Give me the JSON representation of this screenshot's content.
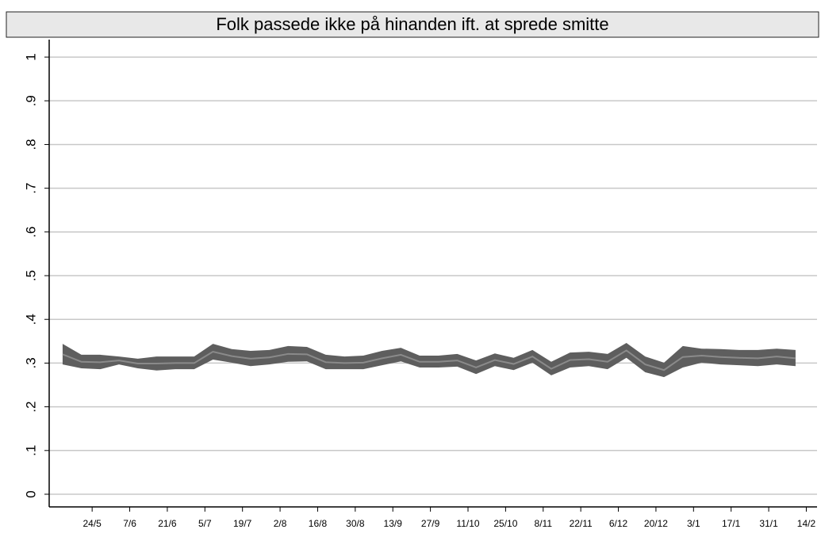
{
  "chart_data": {
    "type": "band",
    "title": "Folk passede ikke på hinanden ift. at sprede smitte",
    "x": [
      -11,
      -4,
      3,
      10,
      17,
      24,
      31,
      38,
      45,
      52,
      59,
      66,
      73,
      80,
      87,
      94,
      101,
      108,
      115,
      122,
      129,
      136,
      143,
      150,
      157,
      164,
      171,
      178,
      185,
      192,
      199,
      206,
      213,
      220,
      227,
      234,
      241,
      248,
      255,
      262
    ],
    "values": [
      0.32,
      0.303,
      0.302,
      0.306,
      0.299,
      0.299,
      0.3,
      0.3,
      0.326,
      0.316,
      0.31,
      0.313,
      0.321,
      0.32,
      0.302,
      0.3,
      0.301,
      0.311,
      0.319,
      0.303,
      0.303,
      0.306,
      0.29,
      0.307,
      0.298,
      0.315,
      0.287,
      0.307,
      0.309,
      0.303,
      0.329,
      0.297,
      0.284,
      0.314,
      0.317,
      0.314,
      0.312,
      0.311,
      0.315,
      0.311
    ],
    "upper": [
      0.344,
      0.319,
      0.319,
      0.315,
      0.31,
      0.315,
      0.315,
      0.315,
      0.344,
      0.332,
      0.328,
      0.33,
      0.339,
      0.337,
      0.319,
      0.315,
      0.317,
      0.328,
      0.335,
      0.317,
      0.317,
      0.321,
      0.306,
      0.322,
      0.312,
      0.33,
      0.303,
      0.324,
      0.326,
      0.321,
      0.346,
      0.315,
      0.301,
      0.339,
      0.333,
      0.332,
      0.33,
      0.33,
      0.333,
      0.33
    ],
    "lower": [
      0.297,
      0.288,
      0.286,
      0.297,
      0.288,
      0.283,
      0.286,
      0.286,
      0.308,
      0.301,
      0.293,
      0.297,
      0.303,
      0.304,
      0.286,
      0.286,
      0.286,
      0.295,
      0.304,
      0.29,
      0.29,
      0.292,
      0.275,
      0.293,
      0.284,
      0.301,
      0.272,
      0.29,
      0.293,
      0.286,
      0.312,
      0.279,
      0.268,
      0.29,
      0.301,
      0.297,
      0.295,
      0.293,
      0.297,
      0.293
    ],
    "color": "#8a8a8a",
    "band_color": "#5e5e5e",
    "xlim": [
      -16,
      270
    ],
    "xticks": [
      {
        "value": 0,
        "label": "24/5"
      },
      {
        "value": 14,
        "label": "7/6"
      },
      {
        "value": 28,
        "label": "21/6"
      },
      {
        "value": 42,
        "label": "5/7"
      },
      {
        "value": 56,
        "label": "19/7"
      },
      {
        "value": 70,
        "label": "2/8"
      },
      {
        "value": 84,
        "label": "16/8"
      },
      {
        "value": 98,
        "label": "30/8"
      },
      {
        "value": 112,
        "label": "13/9"
      },
      {
        "value": 126,
        "label": "27/9"
      },
      {
        "value": 140,
        "label": "11/10"
      },
      {
        "value": 154,
        "label": "25/10"
      },
      {
        "value": 168,
        "label": "8/11"
      },
      {
        "value": 182,
        "label": "22/11"
      },
      {
        "value": 196,
        "label": "6/12"
      },
      {
        "value": 210,
        "label": "20/12"
      },
      {
        "value": 224,
        "label": "3/1"
      },
      {
        "value": 238,
        "label": "17/1"
      },
      {
        "value": 252,
        "label": "31/1"
      },
      {
        "value": 266,
        "label": "14/2"
      }
    ],
    "ylim": [
      -0.029,
      1.04
    ],
    "yticks": [
      0,
      {
        "value": 0.1,
        "label": ".1"
      },
      {
        "value": 0.2,
        "label": ".2"
      },
      {
        "value": 0.3,
        "label": ".3"
      },
      {
        "value": 0.4,
        "label": ".4"
      },
      {
        "value": 0.5,
        "label": ".5"
      },
      {
        "value": 0.6,
        "label": ".6"
      },
      {
        "value": 0.7,
        "label": ".7"
      },
      {
        "value": 0.8,
        "label": ".8"
      },
      {
        "value": 0.9,
        "label": ".9"
      },
      1
    ],
    "grid": true
  }
}
